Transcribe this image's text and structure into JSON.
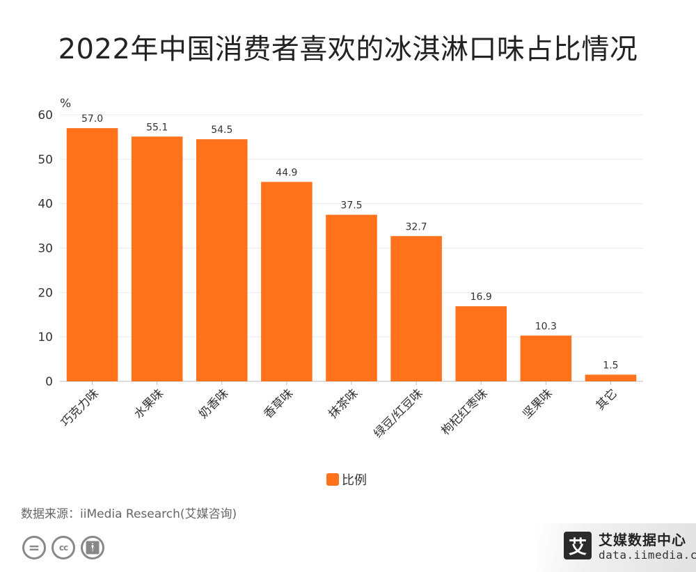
{
  "title": "2022年中国消费者喜欢的冰淇淋口味占比情况",
  "colors": {
    "bar": "#FF711A",
    "grid": "#ebebeb",
    "axis": "#333333"
  },
  "chart_data": {
    "type": "bar",
    "title": "2022年中国消费者喜欢的冰淇淋口味占比情况",
    "ylabel": "%",
    "xlabel": "",
    "categories": [
      "巧克力味",
      "水果味",
      "奶香味",
      "香草味",
      "抹茶味",
      "绿豆/红豆味",
      "枸杞红枣味",
      "坚果味",
      "其它"
    ],
    "series": [
      {
        "name": "比例",
        "values": [
          57.0,
          55.1,
          54.5,
          44.9,
          37.5,
          32.7,
          16.9,
          10.3,
          1.5
        ]
      }
    ],
    "ylim": [
      0,
      60
    ],
    "yticks": [
      0,
      10,
      20,
      30,
      40,
      50,
      60
    ],
    "grid": true,
    "legend": "bottom"
  },
  "source": "数据来源：iiMedia Research(艾媒咨询)",
  "brand": {
    "logo_char": "艾",
    "name": "艾媒数据中心",
    "url": "data.iimedia.cn"
  },
  "cc_icons": [
    "=",
    "cc",
    "person"
  ]
}
